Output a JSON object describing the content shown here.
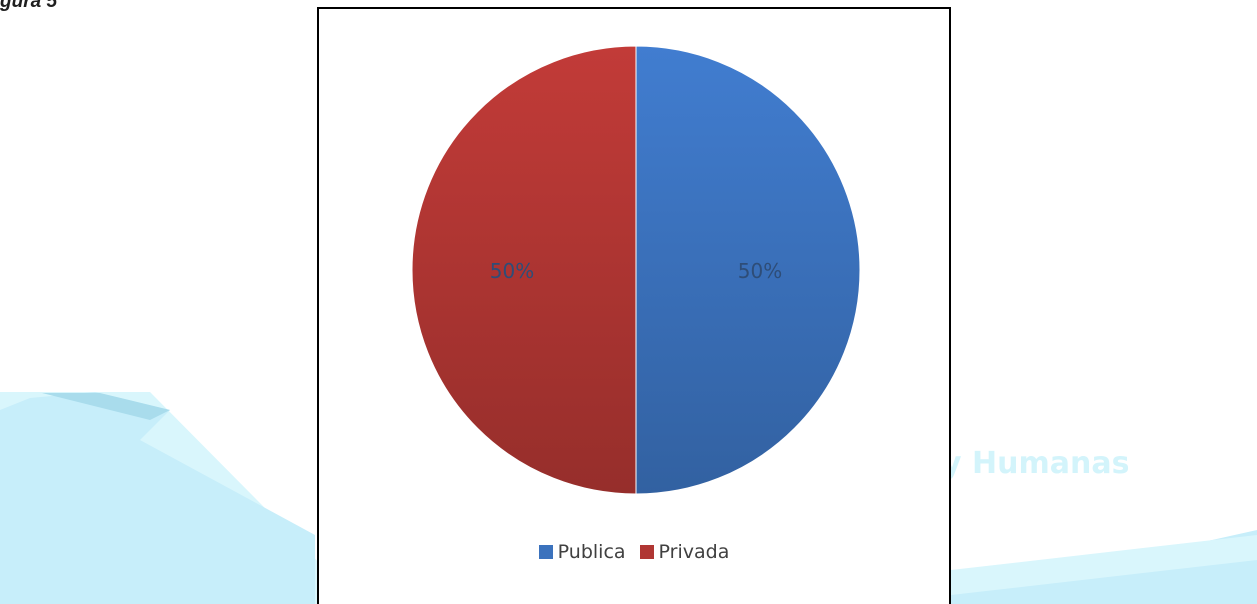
{
  "header": {
    "caption": "gura 5"
  },
  "watermark": {
    "text": "y Humanas"
  },
  "colors": {
    "publica": "#3b72bd",
    "privada": "#b03633",
    "watermark_fill": "#c7eefa",
    "watermark_shade": "#a9dcec"
  },
  "chart_data": {
    "type": "pie",
    "title": "",
    "series": [
      {
        "name": "Publica",
        "value": 50,
        "label": "50%",
        "color": "#3b72bd"
      },
      {
        "name": "Privada",
        "value": 50,
        "label": "50%",
        "color": "#b03633"
      }
    ],
    "start_angle_deg": 0,
    "direction": "clockwise",
    "legend": {
      "position": "bottom"
    }
  }
}
